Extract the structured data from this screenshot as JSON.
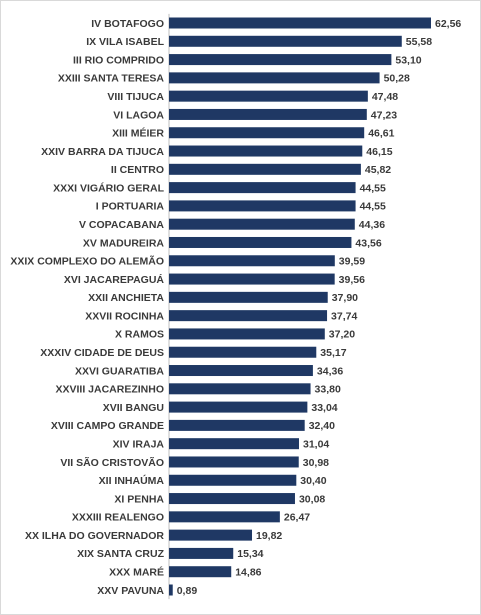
{
  "chart_data": {
    "type": "bar",
    "orientation": "horizontal",
    "title": "",
    "xlabel": "",
    "ylabel": "",
    "grid": false,
    "legend": "none",
    "bar_color": "#1f3864",
    "xlim": [
      0,
      62.56
    ],
    "categories": [
      "IV BOTAFOGO",
      "IX VILA ISABEL",
      "III RIO COMPRIDO",
      "XXIII SANTA TERESA",
      "VIII TIJUCA",
      "VI LAGOA",
      "XIII MÉIER",
      "XXIV BARRA DA TIJUCA",
      "II CENTRO",
      "XXXI VIGÁRIO GERAL",
      "I PORTUARIA",
      "V COPACABANA",
      "XV MADUREIRA",
      "XXIX COMPLEXO DO ALEMÃO",
      "XVI JACAREPAGUÁ",
      "XXII ANCHIETA",
      "XXVII ROCINHA",
      "X RAMOS",
      "XXXIV CIDADE DE DEUS",
      "XXVI GUARATIBA",
      "XXVIII JACAREZINHO",
      "XVII BANGU",
      "XVIII CAMPO GRANDE",
      "XIV IRAJA",
      "VII SÃO CRISTOVÃO",
      "XII INHAÚMA",
      "XI PENHA",
      "XXXIII REALENGO",
      "XX ILHA DO GOVERNADOR",
      "XIX SANTA CRUZ",
      "XXX MARÉ",
      "XXV PAVUNA"
    ],
    "values": [
      62.56,
      55.58,
      53.1,
      50.28,
      47.48,
      47.23,
      46.61,
      46.15,
      45.82,
      44.55,
      44.55,
      44.36,
      43.56,
      39.59,
      39.56,
      37.9,
      37.74,
      37.2,
      35.17,
      34.36,
      33.8,
      33.04,
      32.4,
      31.04,
      30.98,
      30.4,
      30.08,
      26.47,
      19.82,
      15.34,
      14.86,
      0.89
    ],
    "value_labels": [
      "62,56",
      "55,58",
      "53,10",
      "50,28",
      "47,48",
      "47,23",
      "46,61",
      "46,15",
      "45,82",
      "44,55",
      "44,55",
      "44,36",
      "43,56",
      "39,59",
      "39,56",
      "37,90",
      "37,74",
      "37,20",
      "35,17",
      "34,36",
      "33,80",
      "33,04",
      "32,40",
      "31,04",
      "30,98",
      "30,40",
      "30,08",
      "26,47",
      "19,82",
      "15,34",
      "14,86",
      "0,89"
    ]
  }
}
